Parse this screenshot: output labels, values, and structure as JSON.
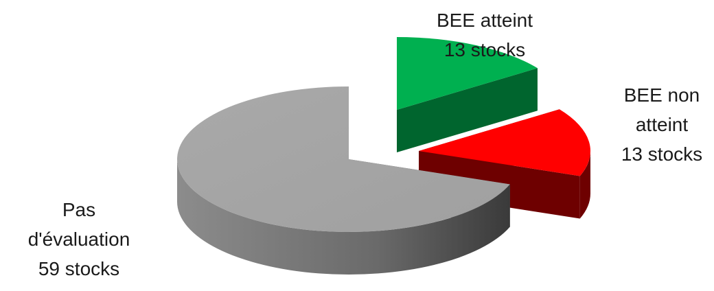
{
  "chart_data": {
    "type": "pie",
    "style": "3d-exploded",
    "unit": "stocks",
    "slices": [
      {
        "name": "BEE atteint",
        "value": 13,
        "label_lines": [
          "BEE atteint",
          "13 stocks"
        ],
        "color": "#00B050",
        "dark_color": "#00652E"
      },
      {
        "name": "BEE non atteint",
        "value": 13,
        "label_lines": [
          "BEE non",
          "atteint",
          "13 stocks"
        ],
        "color": "#FF0000",
        "dark_color": "#6E0000"
      },
      {
        "name": "Pas d'évaluation",
        "value": 59,
        "label_lines": [
          "Pas",
          "d'évaluation",
          "59 stocks"
        ],
        "color": "#A6A6A6",
        "dark_color": "#5C5C5C"
      }
    ],
    "title": "",
    "legend": "none"
  }
}
